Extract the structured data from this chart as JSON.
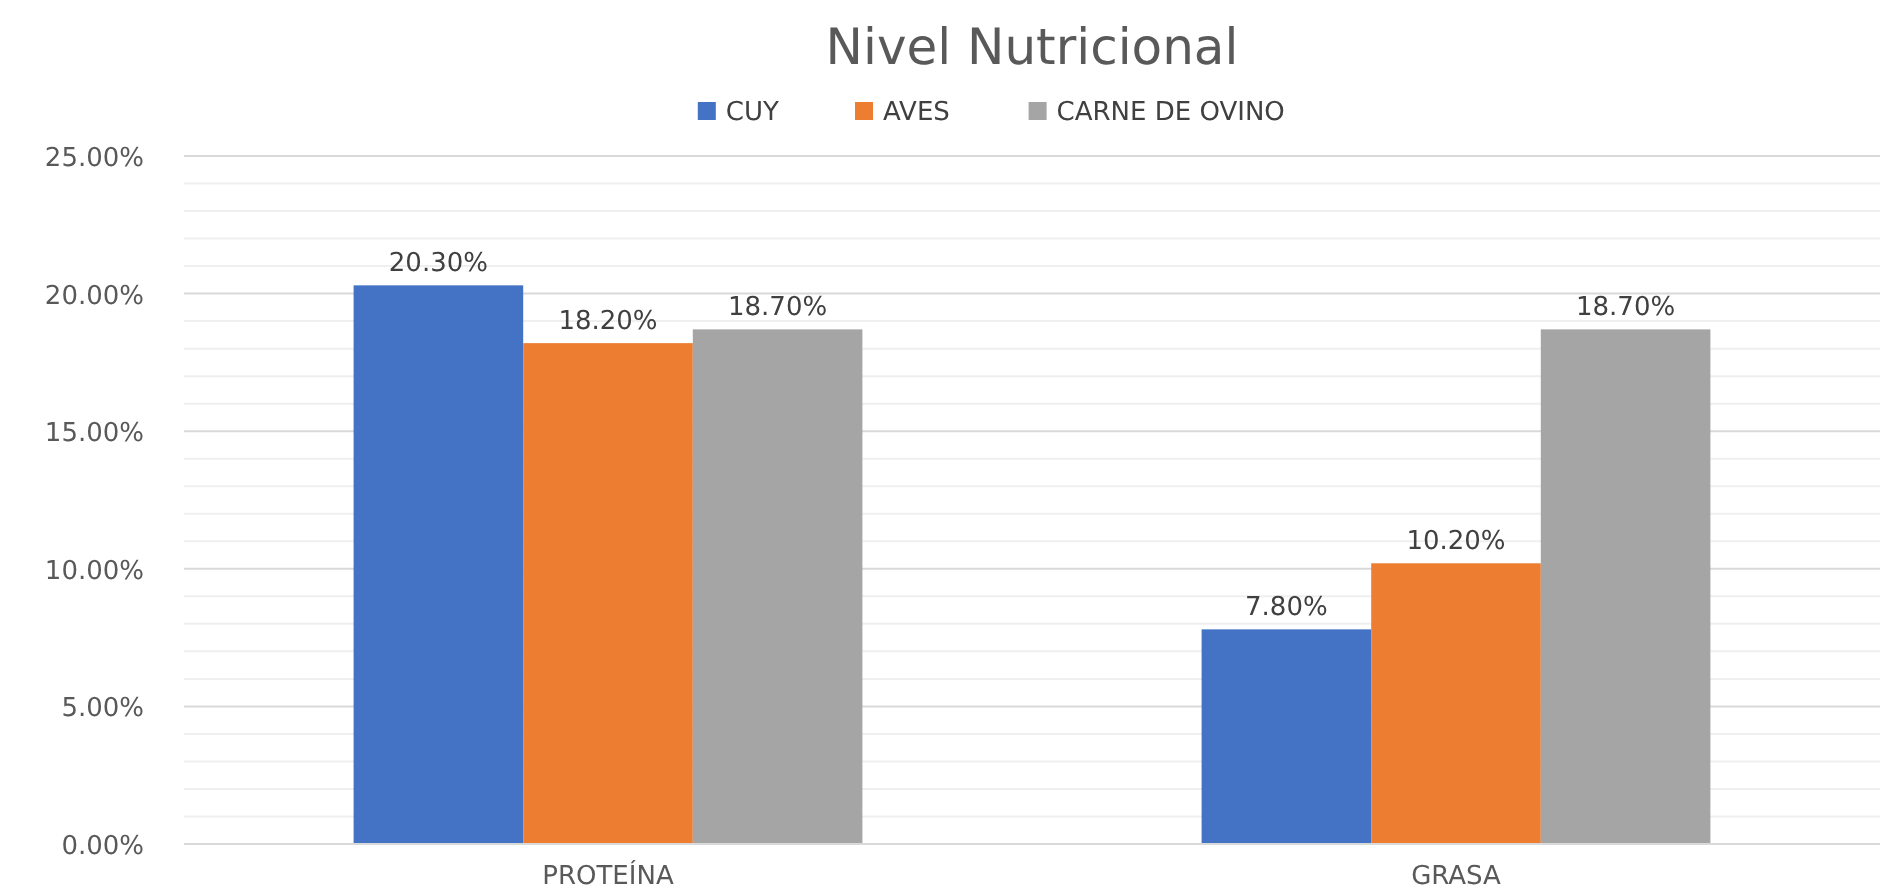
{
  "chart_data": {
    "type": "bar",
    "title": "Nivel Nutricional",
    "categories": [
      "PROTEÍNA",
      "GRASA"
    ],
    "series": [
      {
        "name": "CUY",
        "color": "#4472c4",
        "values": [
          20.3,
          7.8
        ],
        "value_labels": [
          "20.30%",
          "7.80%"
        ]
      },
      {
        "name": "AVES",
        "color": "#ed7d31",
        "values": [
          18.2,
          10.2
        ],
        "value_labels": [
          "18.20%",
          "10.20%"
        ]
      },
      {
        "name": "CARNE DE OVINO",
        "color": "#a5a5a5",
        "values": [
          18.7,
          18.7
        ],
        "value_labels": [
          "18.70%",
          "18.70%"
        ]
      }
    ],
    "ylim": [
      0,
      25
    ],
    "yticks": [
      {
        "value": 0,
        "label": "0.00%"
      },
      {
        "value": 1,
        "label": null
      },
      {
        "value": 2,
        "label": null
      },
      {
        "value": 3,
        "label": null
      },
      {
        "value": 4,
        "label": null
      },
      {
        "value": 5,
        "label": "5.00%"
      },
      {
        "value": 6,
        "label": null
      },
      {
        "value": 7,
        "label": null
      },
      {
        "value": 8,
        "label": null
      },
      {
        "value": 9,
        "label": null
      },
      {
        "value": 10,
        "label": "10.00%"
      },
      {
        "value": 11,
        "label": null
      },
      {
        "value": 12,
        "label": null
      },
      {
        "value": 13,
        "label": null
      },
      {
        "value": 14,
        "label": null
      },
      {
        "value": 15,
        "label": "15.00%"
      },
      {
        "value": 16,
        "label": null
      },
      {
        "value": 17,
        "label": null
      },
      {
        "value": 18,
        "label": null
      },
      {
        "value": 19,
        "label": null
      },
      {
        "value": 20,
        "label": "20.00%"
      },
      {
        "value": 21,
        "label": null
      },
      {
        "value": 22,
        "label": null
      },
      {
        "value": 23,
        "label": null
      },
      {
        "value": 24,
        "label": null
      },
      {
        "value": 25,
        "label": "25.00%"
      }
    ],
    "grid": "y",
    "legend": "top"
  }
}
